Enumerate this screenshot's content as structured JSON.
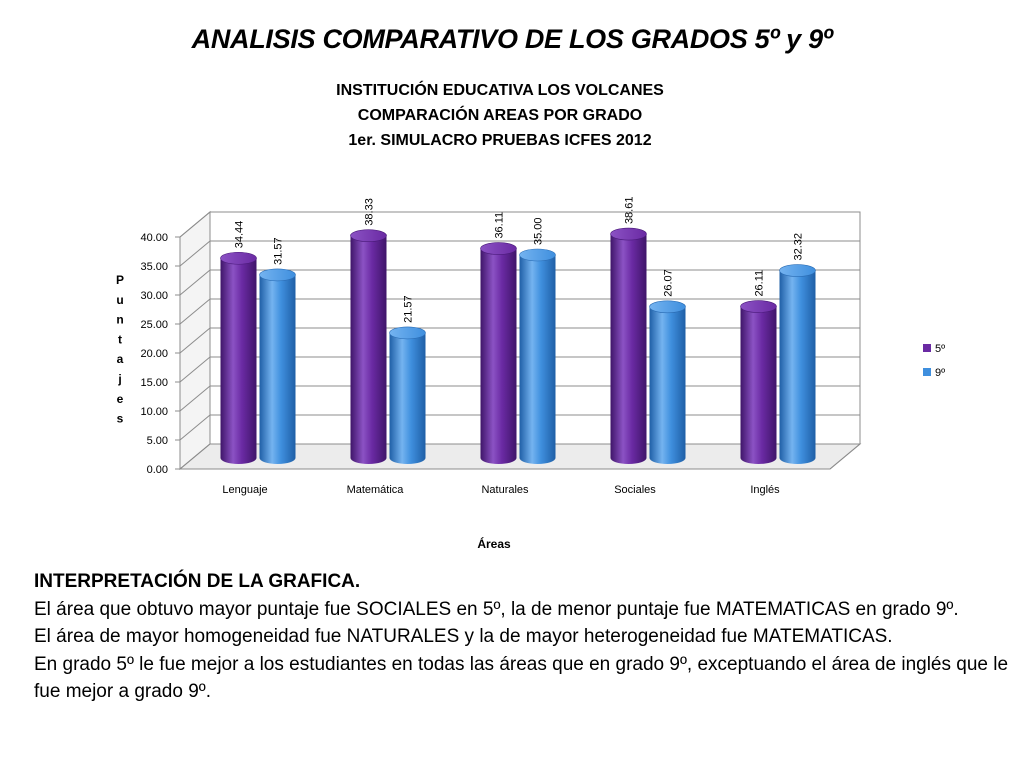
{
  "slide": {
    "title": "ANALISIS COMPARATIVO DE LOS GRADOS 5º y 9º"
  },
  "chart_data": {
    "type": "bar",
    "title_lines": [
      "INSTITUCIÓN EDUCATIVA LOS VOLCANES",
      "COMPARACIÓN AREAS POR GRADO",
      "1er. SIMULACRO PRUEBAS ICFES 2012"
    ],
    "categories": [
      "Lenguaje",
      "Matemática",
      "Naturales",
      "Sociales",
      "Inglés"
    ],
    "series": [
      {
        "name": "5º",
        "values": [
          34.44,
          38.33,
          36.11,
          38.61,
          26.11
        ],
        "color": "#6a2aa3"
      },
      {
        "name": "9º",
        "values": [
          31.57,
          21.57,
          35.0,
          26.07,
          32.32
        ],
        "color": "#3f8fde"
      }
    ],
    "value_labels": [
      [
        "34.44",
        "38.33",
        "36.11",
        "38.61",
        "26.11"
      ],
      [
        "31.57",
        "21.57",
        "35.00",
        "26.07",
        "32.32"
      ]
    ],
    "ylim": [
      0,
      40
    ],
    "yticks": [
      "0.00",
      "5.00",
      "10.00",
      "15.00",
      "20.00",
      "25.00",
      "30.00",
      "35.00",
      "40.00"
    ],
    "xlabel": "Áreas",
    "ylabel": "Puntajes",
    "legend_position": "right",
    "grid": true,
    "style": "3d-cylinder"
  },
  "interpretation": {
    "heading": "INTERPRETACIÓN DE LA GRAFICA.",
    "paragraphs": [
      "El área que obtuvo mayor puntaje fue SOCIALES en 5º, la de menor puntaje fue MATEMATICAS en grado 9º.",
      "El área de mayor homogeneidad fue NATURALES y la de mayor heterogeneidad fue MATEMATICAS.",
      "En grado 5º le fue mejor a los estudiantes en todas las áreas que en grado 9º, exceptuando el área de inglés que le fue mejor a grado 9º."
    ]
  }
}
